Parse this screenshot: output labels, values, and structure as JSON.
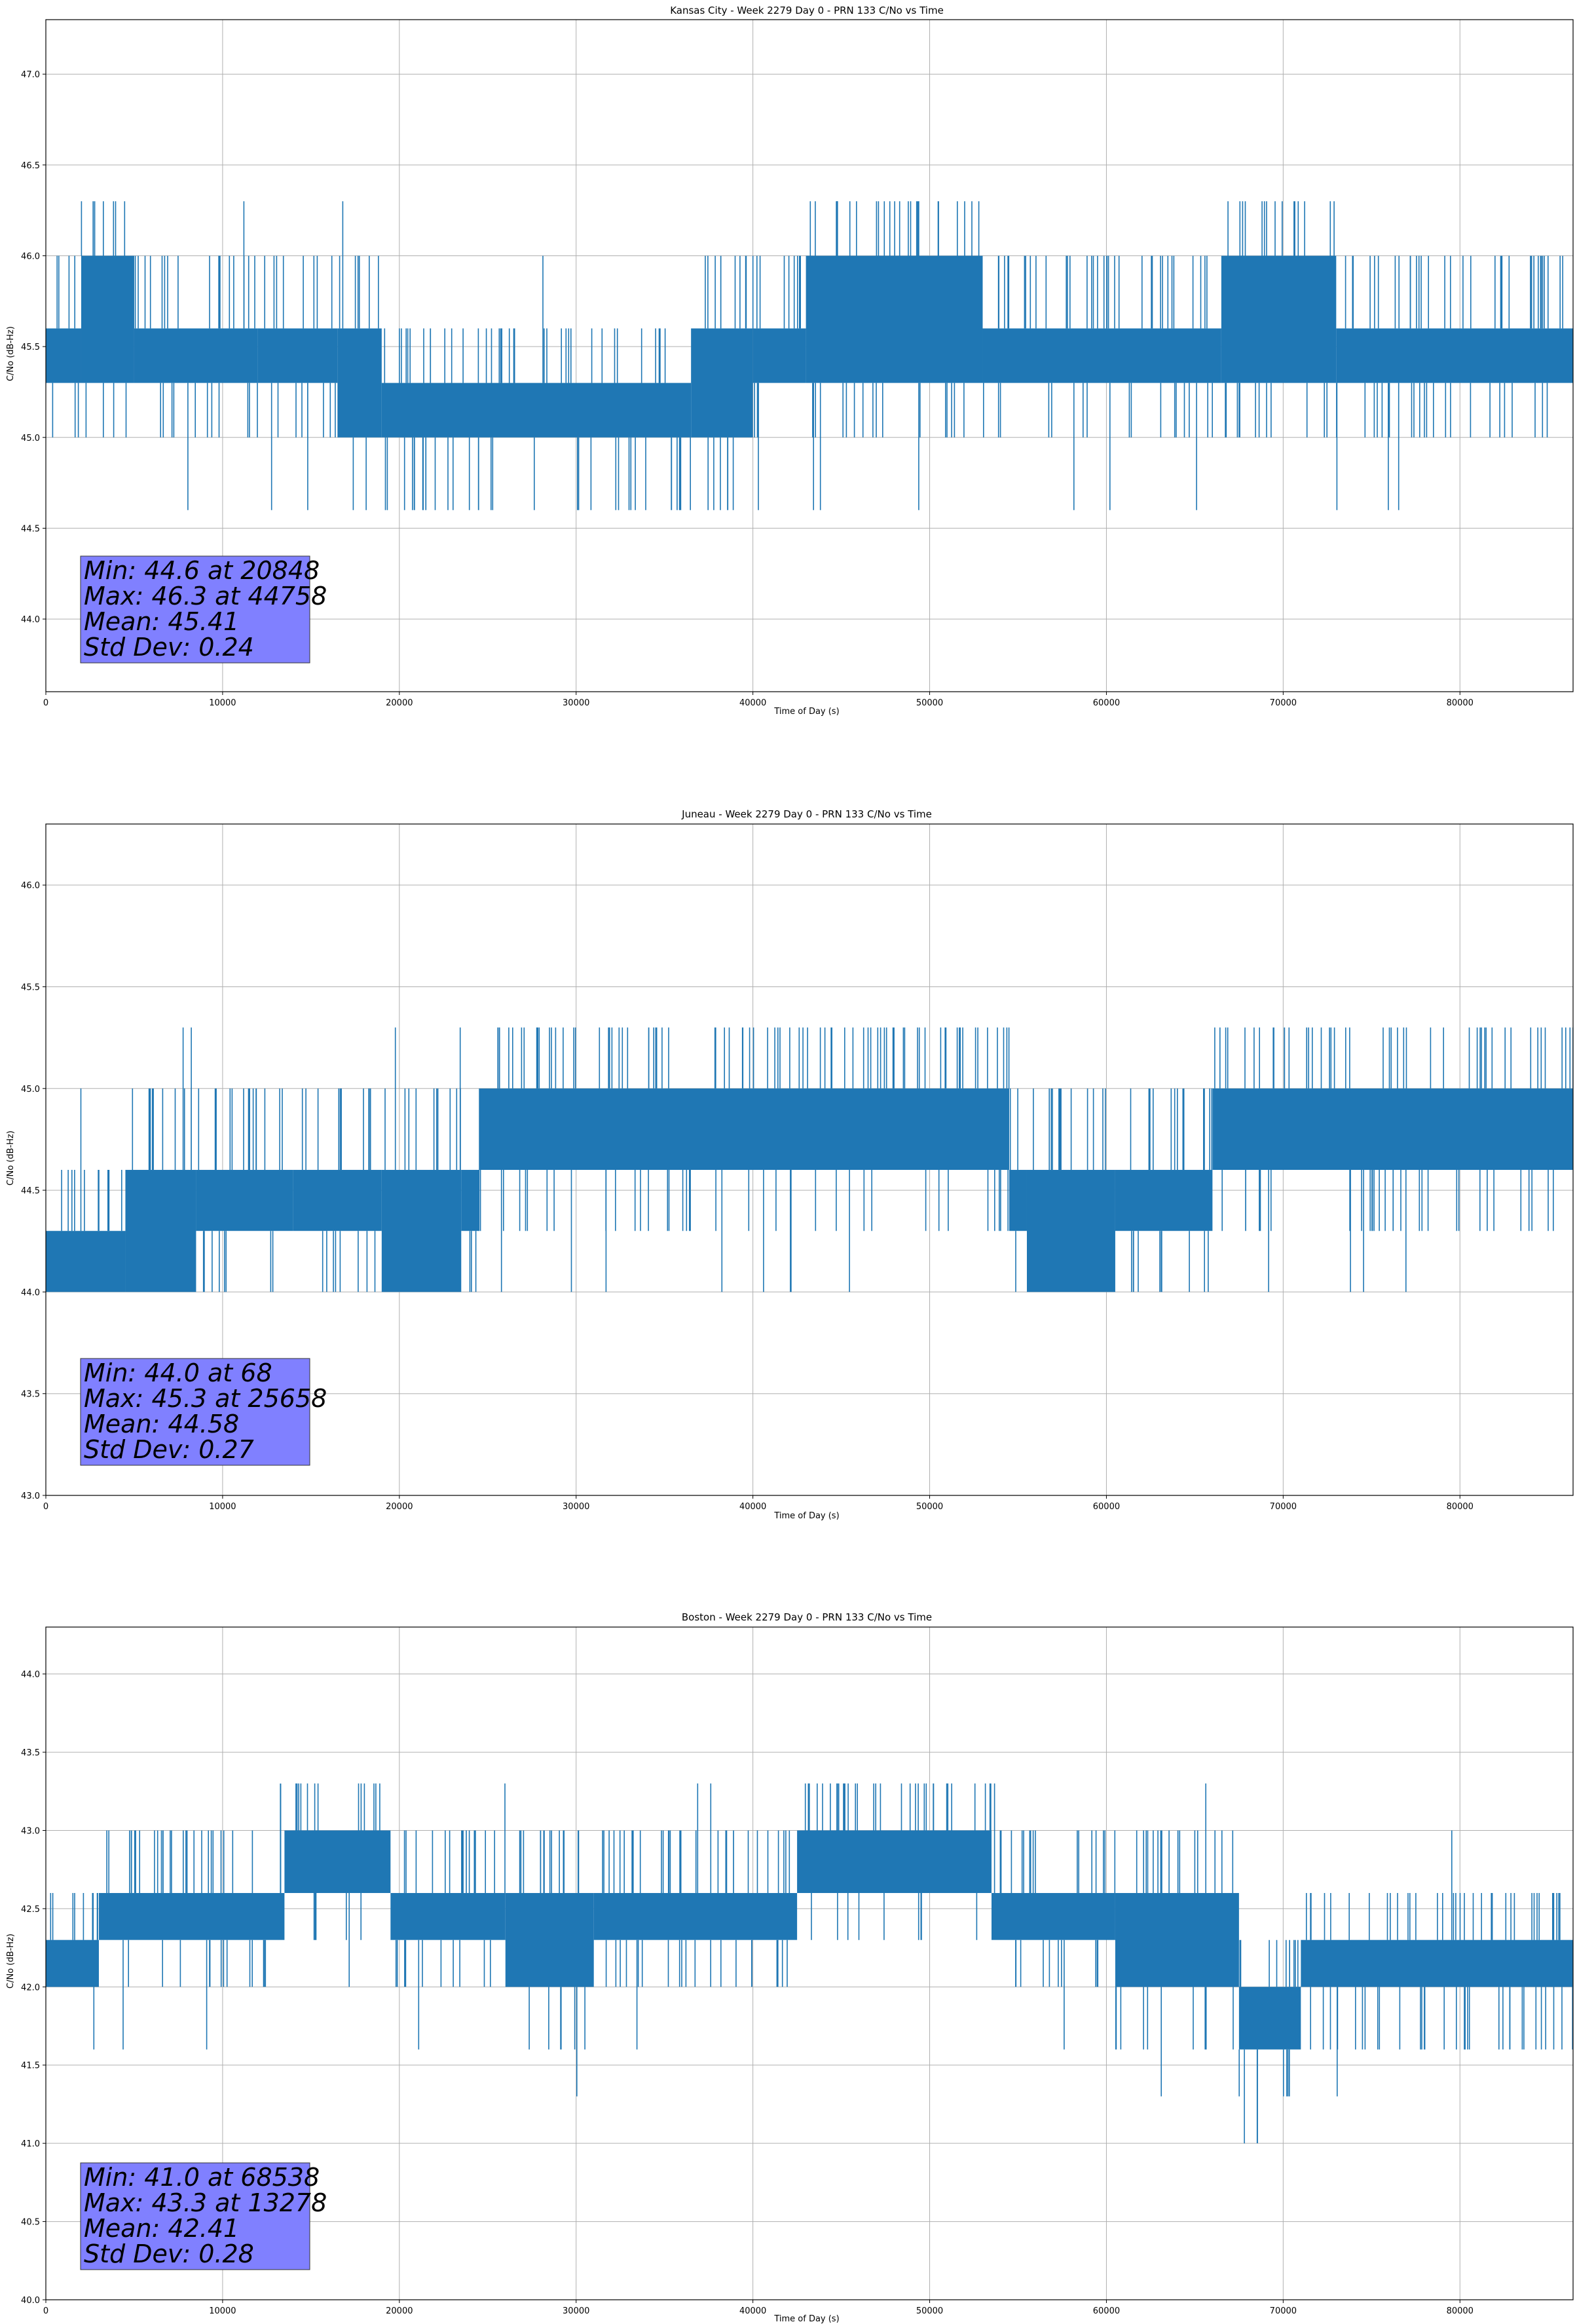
{
  "figure": {
    "background": "#ffffff",
    "line_color": "#1f77b4",
    "stats_box_color": "#8080ff"
  },
  "chart_data": [
    {
      "type": "line",
      "title": "Kansas City - Week 2279 Day 0 - PRN 133 C/No vs Time",
      "xlabel": "Time of Day (s)",
      "ylabel": "C/No (dB-Hz)",
      "xlim": [
        0,
        86400
      ],
      "ylim": [
        43.6,
        47.3
      ],
      "xticks": [
        0,
        10000,
        20000,
        30000,
        40000,
        50000,
        60000,
        70000,
        80000
      ],
      "yticks": [
        44.0,
        44.5,
        45.0,
        45.5,
        46.0,
        46.5,
        47.0
      ],
      "grid": true,
      "quantized_levels": [
        44.6,
        45.0,
        45.3,
        45.6,
        46.0,
        46.3
      ],
      "segments": [
        {
          "x": [
            0,
            2000
          ],
          "band": [
            45.3,
            45.6
          ]
        },
        {
          "x": [
            2000,
            5000
          ],
          "band": [
            45.3,
            46.0
          ]
        },
        {
          "x": [
            5000,
            12000
          ],
          "band": [
            45.3,
            45.6
          ]
        },
        {
          "x": [
            12000,
            16500
          ],
          "band": [
            45.3,
            45.6
          ]
        },
        {
          "x": [
            16500,
            19000
          ],
          "band": [
            45.0,
            45.6
          ]
        },
        {
          "x": [
            19000,
            36500
          ],
          "band": [
            45.0,
            45.3
          ]
        },
        {
          "x": [
            36500,
            40000
          ],
          "band": [
            45.0,
            45.6
          ]
        },
        {
          "x": [
            40000,
            43000
          ],
          "band": [
            45.3,
            45.6
          ]
        },
        {
          "x": [
            43000,
            53000
          ],
          "band": [
            45.3,
            46.0
          ]
        },
        {
          "x": [
            53000,
            66500
          ],
          "band": [
            45.3,
            45.6
          ]
        },
        {
          "x": [
            66500,
            73000
          ],
          "band": [
            45.3,
            46.0
          ]
        },
        {
          "x": [
            73000,
            86400
          ],
          "band": [
            45.3,
            45.6
          ]
        }
      ],
      "stats": {
        "min": 44.6,
        "min_time": 20848,
        "max": 46.3,
        "max_time": 44758,
        "mean": 45.41,
        "std_dev": 0.24
      },
      "stats_lines": [
        "Min: 44.6 at 20848",
        "Max: 46.3 at 44758",
        "Mean: 45.41",
        "Std Dev: 0.24"
      ]
    },
    {
      "type": "line",
      "title": "Juneau - Week 2279 Day 0 - PRN 133 C/No vs Time",
      "xlabel": "Time of Day (s)",
      "ylabel": "C/No (dB-Hz)",
      "xlim": [
        0,
        86400
      ],
      "ylim": [
        43.0,
        46.3
      ],
      "xticks": [
        0,
        10000,
        20000,
        30000,
        40000,
        50000,
        60000,
        70000,
        80000
      ],
      "yticks": [
        43.0,
        43.5,
        44.0,
        44.5,
        45.0,
        45.5,
        46.0
      ],
      "grid": true,
      "quantized_levels": [
        44.0,
        44.3,
        44.6,
        45.0,
        45.3
      ],
      "segments": [
        {
          "x": [
            0,
            4500
          ],
          "band": [
            44.0,
            44.3
          ]
        },
        {
          "x": [
            4500,
            8500
          ],
          "band": [
            44.0,
            44.6
          ]
        },
        {
          "x": [
            8500,
            14000
          ],
          "band": [
            44.3,
            44.6
          ]
        },
        {
          "x": [
            14000,
            19000
          ],
          "band": [
            44.3,
            44.6
          ]
        },
        {
          "x": [
            19000,
            23500
          ],
          "band": [
            44.0,
            44.6
          ]
        },
        {
          "x": [
            23500,
            24500
          ],
          "band": [
            44.3,
            44.6
          ]
        },
        {
          "x": [
            24500,
            54500
          ],
          "band": [
            44.6,
            45.0
          ]
        },
        {
          "x": [
            54500,
            55500
          ],
          "band": [
            44.3,
            44.6
          ]
        },
        {
          "x": [
            55500,
            60500
          ],
          "band": [
            44.0,
            44.6
          ]
        },
        {
          "x": [
            60500,
            66000
          ],
          "band": [
            44.3,
            44.6
          ]
        },
        {
          "x": [
            66000,
            86400
          ],
          "band": [
            44.6,
            45.0
          ]
        }
      ],
      "stats": {
        "min": 44.0,
        "min_time": 68,
        "max": 45.3,
        "max_time": 25658,
        "mean": 44.58,
        "std_dev": 0.27
      },
      "stats_lines": [
        "Min: 44.0 at 68",
        "Max: 45.3 at 25658",
        "Mean: 44.58",
        "Std Dev: 0.27"
      ]
    },
    {
      "type": "line",
      "title": "Boston - Week 2279 Day 0 - PRN 133 C/No vs Time",
      "xlabel": "Time of Day (s)",
      "ylabel": "C/No (dB-Hz)",
      "xlim": [
        0,
        86400
      ],
      "ylim": [
        40.0,
        44.3
      ],
      "xticks": [
        0,
        10000,
        20000,
        30000,
        40000,
        50000,
        60000,
        70000,
        80000
      ],
      "yticks": [
        40.0,
        40.5,
        41.0,
        41.5,
        42.0,
        42.5,
        43.0,
        43.5,
        44.0
      ],
      "grid": true,
      "quantized_levels": [
        41.0,
        41.3,
        41.6,
        42.0,
        42.3,
        42.6,
        43.0,
        43.3
      ],
      "segments": [
        {
          "x": [
            0,
            3000
          ],
          "band": [
            42.0,
            42.3
          ]
        },
        {
          "x": [
            3000,
            13500
          ],
          "band": [
            42.3,
            42.6
          ]
        },
        {
          "x": [
            13500,
            19500
          ],
          "band": [
            42.6,
            43.0
          ]
        },
        {
          "x": [
            19500,
            26000
          ],
          "band": [
            42.3,
            42.6
          ]
        },
        {
          "x": [
            26000,
            31000
          ],
          "band": [
            42.0,
            42.6
          ]
        },
        {
          "x": [
            31000,
            42500
          ],
          "band": [
            42.3,
            42.6
          ]
        },
        {
          "x": [
            42500,
            53500
          ],
          "band": [
            42.6,
            43.0
          ]
        },
        {
          "x": [
            53500,
            60500
          ],
          "band": [
            42.3,
            42.6
          ]
        },
        {
          "x": [
            60500,
            67500
          ],
          "band": [
            42.0,
            42.6
          ]
        },
        {
          "x": [
            67500,
            71000
          ],
          "band": [
            41.6,
            42.0
          ]
        },
        {
          "x": [
            71000,
            86400
          ],
          "band": [
            42.0,
            42.3
          ]
        }
      ],
      "stats": {
        "min": 41.0,
        "min_time": 68538,
        "max": 43.3,
        "max_time": 13278,
        "mean": 42.41,
        "std_dev": 0.28
      },
      "stats_lines": [
        "Min: 41.0 at 68538",
        "Max: 43.3 at 13278",
        "Mean: 42.41",
        "Std Dev: 0.28"
      ]
    }
  ]
}
